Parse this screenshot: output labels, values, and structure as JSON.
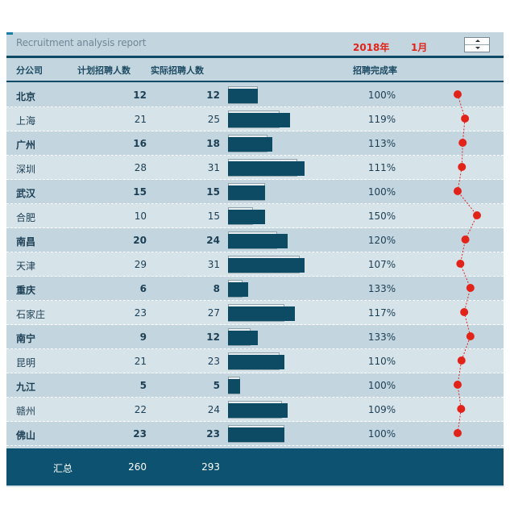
{
  "header": {
    "title": "Recruitment analysis report",
    "year": "2018年",
    "month": "1月"
  },
  "columns": {
    "city": "分公司",
    "plan": "计划招聘人数",
    "actual": "实际招聘人数",
    "rate": "招聘完成率"
  },
  "colors": {
    "bar": "#0d4a63",
    "dot": "#e2231a",
    "accent": "#e2231a",
    "footer": "#0d5270"
  },
  "chart_data": {
    "type": "table",
    "categories": [
      "北京",
      "上海",
      "广州",
      "深圳",
      "武汉",
      "合肥",
      "南昌",
      "天津",
      "重庆",
      "石家庄",
      "南宁",
      "昆明",
      "九江",
      "赣州",
      "佛山"
    ],
    "series": [
      {
        "name": "计划招聘人数",
        "values": [
          12,
          21,
          16,
          28,
          15,
          10,
          20,
          29,
          6,
          23,
          9,
          21,
          5,
          22,
          23
        ]
      },
      {
        "name": "实际招聘人数",
        "values": [
          12,
          25,
          18,
          31,
          15,
          15,
          24,
          31,
          8,
          27,
          12,
          23,
          5,
          24,
          23
        ]
      },
      {
        "name": "招聘完成率",
        "values": [
          100,
          119,
          113,
          111,
          100,
          150,
          120,
          107,
          133,
          117,
          133,
          110,
          100,
          109,
          100
        ]
      }
    ],
    "rate_labels": [
      "100%",
      "119%",
      "113%",
      "111%",
      "100%",
      "150%",
      "120%",
      "107%",
      "133%",
      "117%",
      "133%",
      "110%",
      "100%",
      "109%",
      "100%"
    ],
    "bar_max": 31,
    "rate_range": [
      100,
      150
    ]
  },
  "footer": {
    "label": "汇总",
    "plan_total": "260",
    "actual_total": "293"
  }
}
